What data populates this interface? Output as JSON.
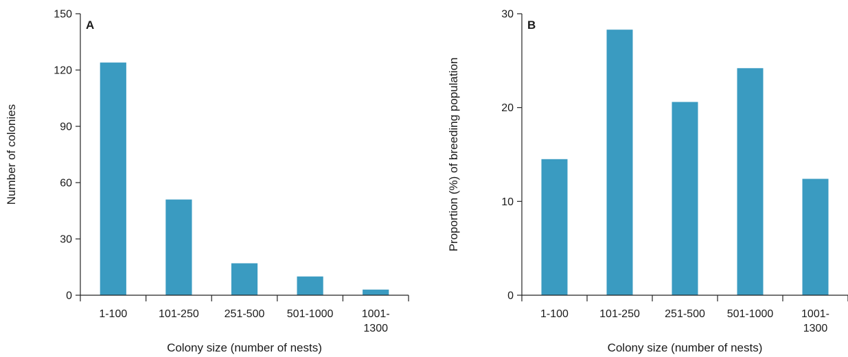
{
  "chart_data": [
    {
      "type": "bar",
      "panel_label": "A",
      "categories": [
        [
          "1-100"
        ],
        [
          "101-250"
        ],
        [
          "251-500"
        ],
        [
          "501-1000"
        ],
        [
          "1001-",
          "1300"
        ]
      ],
      "values": [
        124,
        51,
        17,
        10,
        3
      ],
      "xlabel": "Colony size (number of nests)",
      "ylabel": "Number of colonies",
      "ylim": [
        0,
        150
      ],
      "yticks": [
        0,
        30,
        60,
        90,
        120,
        150
      ],
      "grid": false,
      "bar_color": "#3a9bc1"
    },
    {
      "type": "bar",
      "panel_label": "B",
      "categories": [
        [
          "1-100"
        ],
        [
          "101-250"
        ],
        [
          "251-500"
        ],
        [
          "501-1000"
        ],
        [
          "1001-",
          "1300"
        ]
      ],
      "values": [
        14.5,
        28.3,
        20.6,
        24.2,
        12.4
      ],
      "xlabel": "Colony size (number of nests)",
      "ylabel": "Proportion (%) of breeding population",
      "ylim": [
        0,
        30
      ],
      "yticks": [
        0,
        10,
        20,
        30
      ],
      "grid": false,
      "bar_color": "#3a9bc1"
    }
  ]
}
